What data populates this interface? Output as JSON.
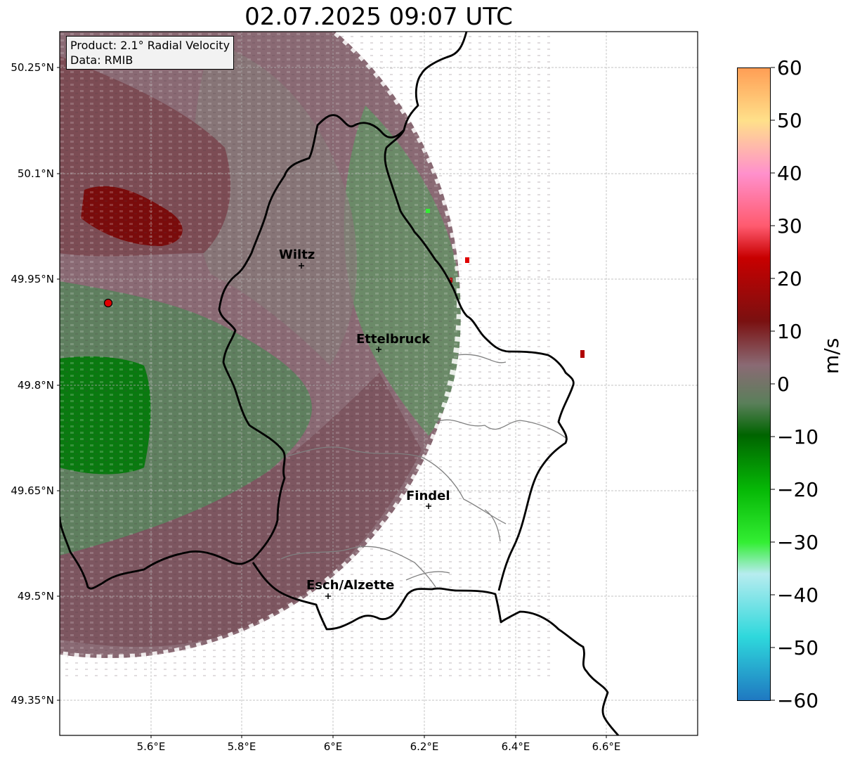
{
  "title": "02.07.2025 09:07 UTC",
  "infobox": {
    "product": "Product: 2.1° Radial Velocity",
    "data_source": "Data: RMIB"
  },
  "axes": {
    "lon_ticks": [
      "5.6°E",
      "5.8°E",
      "6°E",
      "6.2°E",
      "6.4°E",
      "6.6°E"
    ],
    "lat_ticks": [
      "50.25°N",
      "50.1°N",
      "49.95°N",
      "49.8°N",
      "49.65°N",
      "49.5°N",
      "49.35°N"
    ]
  },
  "cities": [
    {
      "name": "Wiltz"
    },
    {
      "name": "Ettelbruck"
    },
    {
      "name": "Findel"
    },
    {
      "name": "Esch/Alzette"
    }
  ],
  "colorbar": {
    "unit": "m/s",
    "ticks": [
      "60",
      "50",
      "40",
      "30",
      "20",
      "10",
      "0",
      "−10",
      "−20",
      "−30",
      "−40",
      "−50",
      "−60"
    ],
    "min": -60,
    "max": 60,
    "colors": {
      "neg_60": "#1f78c1",
      "neg_50": "#2ed8dc",
      "neg_40": "#b7ecef",
      "neg_30": "#33ee33",
      "neg_20": "#06b806",
      "neg_10": "#006400",
      "zero_neg": "#5a7f5a",
      "zero_pos": "#8a6a74",
      "pos_10": "#7a1010",
      "pos_20": "#c80000",
      "pos_30": "#ff5a6e",
      "pos_40": "#ff90cc",
      "pos_50": "#ffe08a",
      "pos_60": "#ff9e55"
    }
  }
}
